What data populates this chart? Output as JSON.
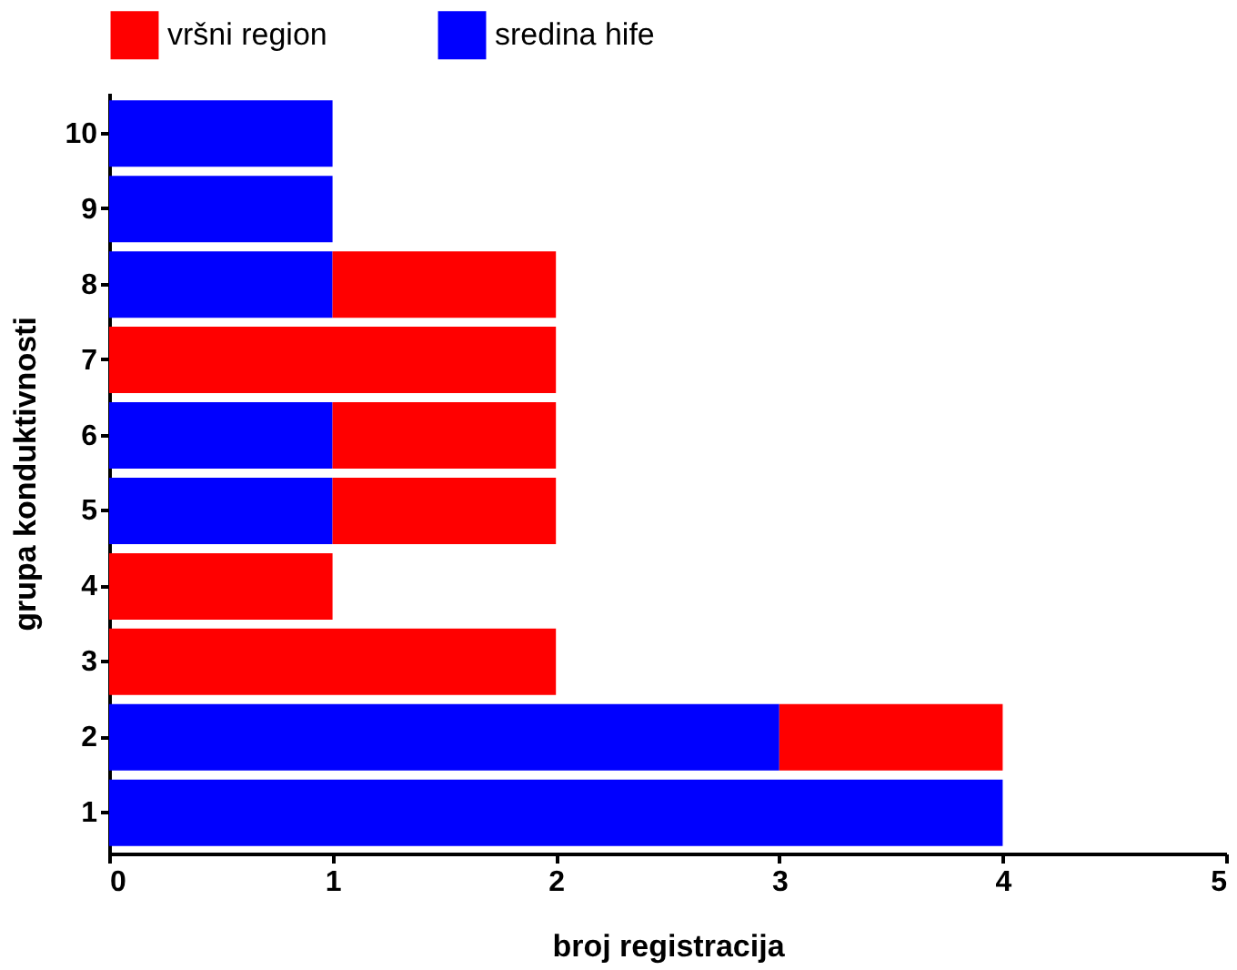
{
  "chart_data": {
    "type": "bar",
    "orientation": "horizontal",
    "stacked": true,
    "xlabel": "broj registracija",
    "ylabel": "grupa konduktivnosti",
    "categories": [
      "10",
      "9",
      "8",
      "7",
      "6",
      "5",
      "4",
      "3",
      "2",
      "1"
    ],
    "series": [
      {
        "name": "sredina hife",
        "color": "#0000ff",
        "values": [
          1,
          1,
          1,
          0,
          1,
          1,
          0,
          0,
          3,
          4
        ]
      },
      {
        "name": "vršni region",
        "color": "#ff0000",
        "values": [
          0,
          0,
          1,
          2,
          1,
          1,
          1,
          2,
          1,
          0
        ]
      }
    ],
    "xlim": [
      0,
      5
    ],
    "xticks": [
      0,
      1,
      2,
      3,
      4,
      5
    ],
    "grid": false,
    "legend": "top"
  }
}
